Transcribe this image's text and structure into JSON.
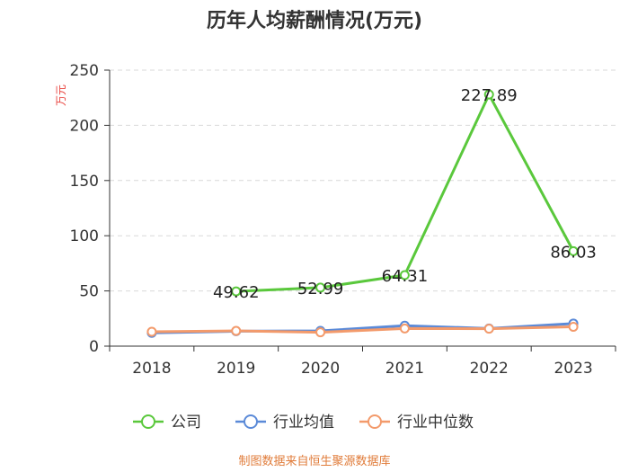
{
  "chart_data": {
    "type": "line",
    "title": "历年人均薪酬情况(万元)",
    "ylabel": "万元",
    "xlabel": "",
    "categories": [
      "2018",
      "2019",
      "2020",
      "2021",
      "2022",
      "2023"
    ],
    "ylim": [
      0,
      250
    ],
    "yticks": [
      0,
      50,
      100,
      150,
      200,
      250
    ],
    "grid": true,
    "legend_position": "bottom",
    "series": [
      {
        "name": "公司",
        "color": "#5ac83c",
        "values": [
          null,
          49.62,
          52.99,
          64.31,
          227.89,
          86.03
        ],
        "labels": [
          null,
          "49.62",
          "52.99",
          "64.31",
          "227.89",
          "86.03"
        ]
      },
      {
        "name": "行业均值",
        "color": "#5b8ad8",
        "values": [
          12.0,
          13.5,
          13.8,
          18.5,
          16.0,
          20.5
        ]
      },
      {
        "name": "行业中位数",
        "color": "#f39a6b",
        "values": [
          13.0,
          13.8,
          12.5,
          16.0,
          15.8,
          17.5
        ]
      }
    ],
    "source": "制图数据来自恒生聚源数据库"
  }
}
